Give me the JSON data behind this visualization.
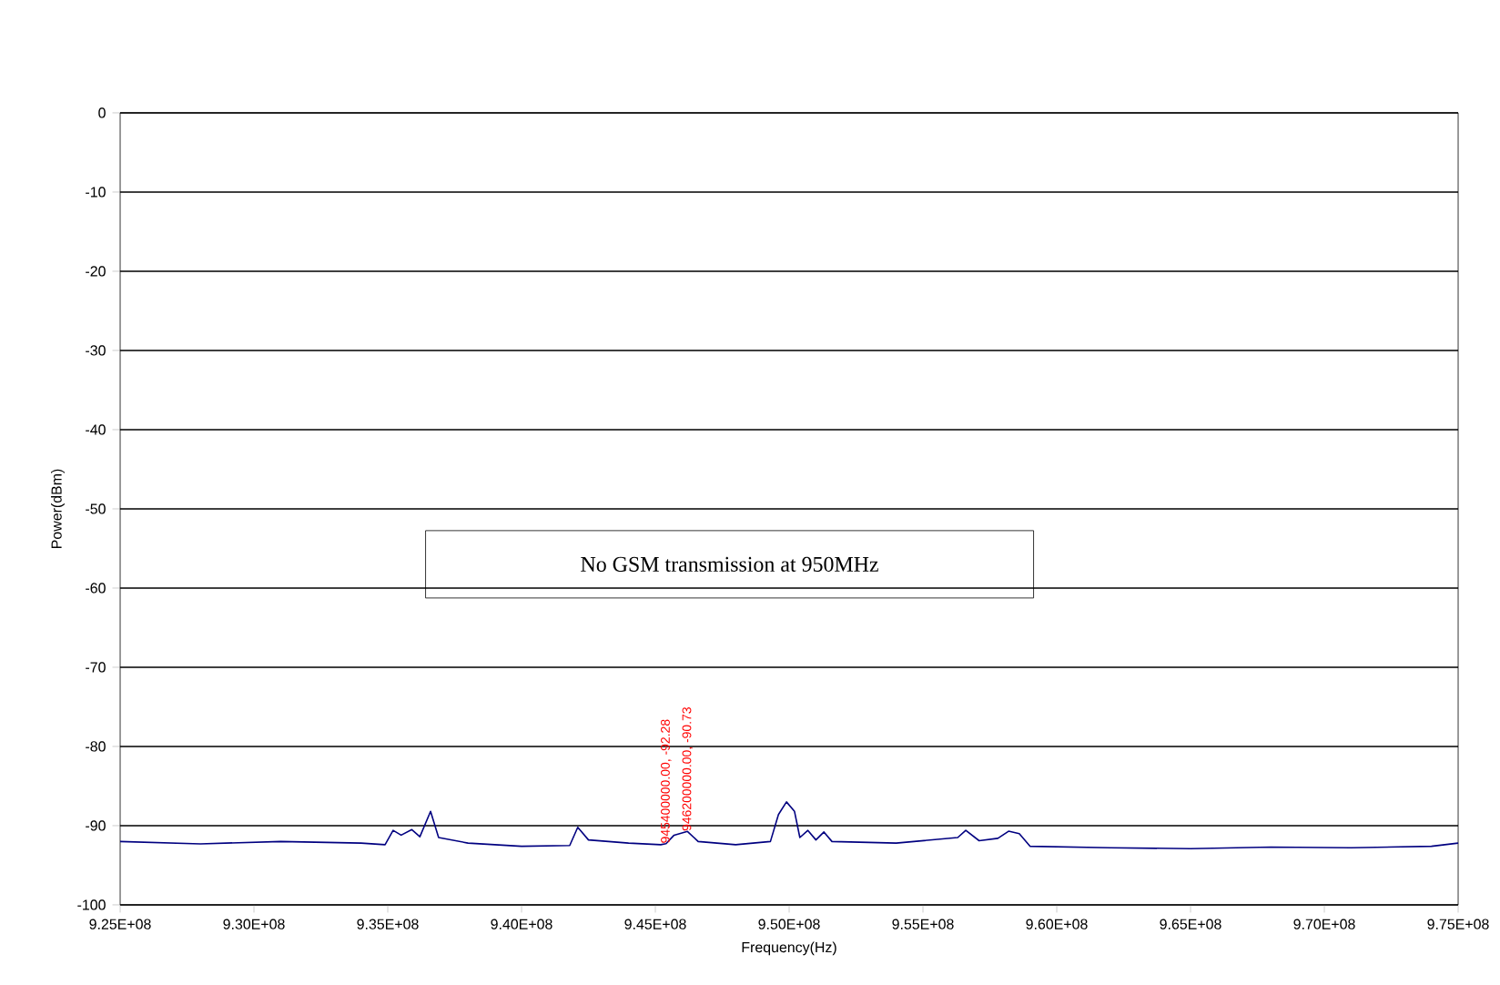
{
  "chart_data": {
    "type": "line",
    "xlabel": "Frequency(Hz)",
    "ylabel": "Power(dBm)",
    "xlim": [
      925000000,
      975000000
    ],
    "xticks": [
      {
        "value": 925000000,
        "label": "9.25E+08"
      },
      {
        "value": 930000000,
        "label": "9.30E+08"
      },
      {
        "value": 935000000,
        "label": "9.35E+08"
      },
      {
        "value": 940000000,
        "label": "9.40E+08"
      },
      {
        "value": 945000000,
        "label": "9.45E+08"
      },
      {
        "value": 950000000,
        "label": "9.50E+08"
      },
      {
        "value": 955000000,
        "label": "9.55E+08"
      },
      {
        "value": 960000000,
        "label": "9.60E+08"
      },
      {
        "value": 965000000,
        "label": "9.65E+08"
      },
      {
        "value": 970000000,
        "label": "9.70E+08"
      },
      {
        "value": 975000000,
        "label": "9.75E+08"
      }
    ],
    "ylim": [
      -100,
      0
    ],
    "yticks": [
      -100,
      -90,
      -80,
      -70,
      -60,
      -50,
      -40,
      -30,
      -20,
      -10,
      0
    ],
    "grid": "y",
    "marker": "none",
    "line_style": "solid",
    "x": [
      925000000,
      928000000,
      931000000,
      934000000,
      934900000,
      935200000,
      935500000,
      935900000,
      936200000,
      936600000,
      936900000,
      938000000,
      940000000,
      941800000,
      942100000,
      942500000,
      944000000,
      945200000,
      945400000,
      945700000,
      946200000,
      946600000,
      948000000,
      949300000,
      949600000,
      949900000,
      950200000,
      950400000,
      950700000,
      951000000,
      951300000,
      951600000,
      954000000,
      956300000,
      956600000,
      957100000,
      957800000,
      958200000,
      958600000,
      959000000,
      962000000,
      965000000,
      968000000,
      971000000,
      974000000,
      975000000
    ],
    "series": [
      {
        "color": "#000080",
        "values": [
          -92.0,
          -92.3,
          -92.0,
          -92.2,
          -92.4,
          -90.6,
          -91.2,
          -90.5,
          -91.4,
          -88.2,
          -91.5,
          -92.2,
          -92.6,
          -92.5,
          -90.2,
          -91.8,
          -92.2,
          -92.4,
          -92.28,
          -91.2,
          -90.73,
          -92.0,
          -92.4,
          -92.0,
          -88.6,
          -87.0,
          -88.2,
          -91.5,
          -90.6,
          -91.8,
          -90.8,
          -92.0,
          -92.2,
          -91.5,
          -90.6,
          -91.9,
          -91.6,
          -90.7,
          -91.0,
          -92.6,
          -92.8,
          -92.9,
          -92.7,
          -92.8,
          -92.6,
          -92.2
        ]
      }
    ],
    "annotations": [
      "No GSM transmission at 950MHz",
      {
        "text": "945400000.00, -92.28",
        "x": 945400000,
        "y": -92.28
      },
      {
        "text": "946200000.00, -90.73",
        "x": 946200000,
        "y": -90.73
      }
    ]
  }
}
